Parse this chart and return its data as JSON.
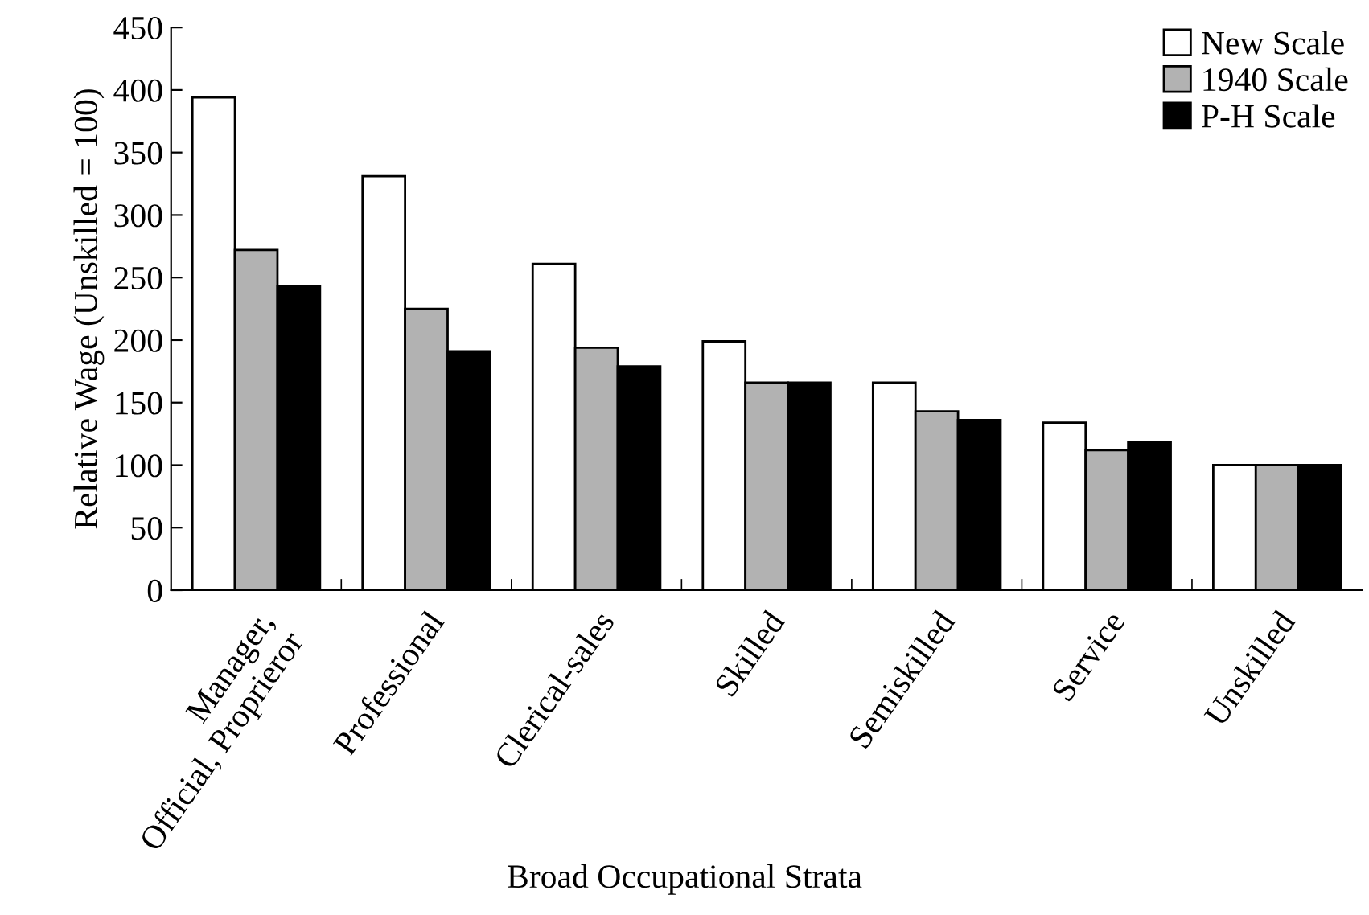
{
  "chart_data": {
    "type": "bar",
    "xlabel": "Broad Occupational Strata",
    "ylabel": "Relative Wage (Unskilled = 100)",
    "categories": [
      "Manager,\nOfficial, Proprieror",
      "Professional",
      "Clerical-sales",
      "Skilled",
      "Semiskilled",
      "Service",
      "Unskilled"
    ],
    "series": [
      {
        "name": "New Scale",
        "color": "#ffffff",
        "values": [
          394,
          331,
          261,
          199,
          166,
          134,
          100
        ]
      },
      {
        "name": "1940 Scale",
        "color": "#b2b2b2",
        "values": [
          272,
          225,
          194,
          166,
          143,
          112,
          100
        ]
      },
      {
        "name": "P-H Scale",
        "color": "#000000",
        "values": [
          243,
          191,
          179,
          166,
          136,
          118,
          100
        ]
      }
    ],
    "ylim": [
      0,
      450
    ],
    "yticks": [
      0,
      50,
      100,
      150,
      200,
      250,
      300,
      350,
      400,
      450
    ],
    "grid": false,
    "legend": "top right"
  }
}
